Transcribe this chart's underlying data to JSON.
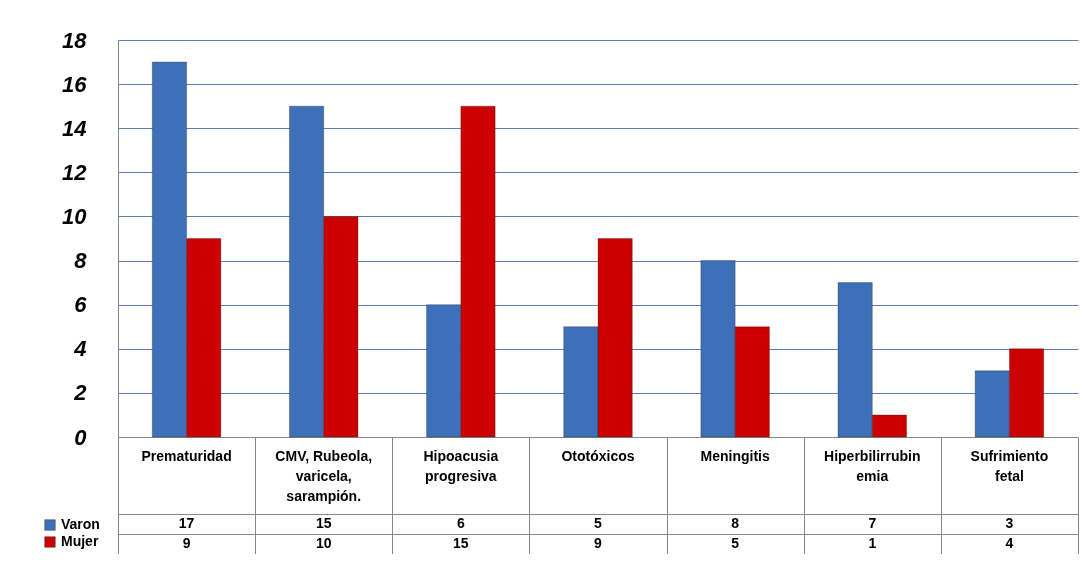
{
  "chart_data": {
    "type": "bar",
    "categories": [
      "Prematuridad",
      "CMV, Rubeola, varicela, sarampión.",
      "Hipoacusia progresiva",
      "Ototóxicos",
      "Meningitis",
      "Hiperbilirrubin emia",
      "Sufrimiento fetal"
    ],
    "series": [
      {
        "name": "Varon",
        "color": "#3d70b8",
        "values": [
          17,
          15,
          6,
          5,
          8,
          7,
          3
        ]
      },
      {
        "name": "Mujer",
        "color": "#cc0000",
        "values": [
          9,
          10,
          15,
          9,
          5,
          1,
          4
        ]
      }
    ],
    "ylim": [
      0,
      18
    ],
    "yticks": [
      0,
      2,
      4,
      6,
      8,
      10,
      12,
      14,
      16,
      18
    ],
    "grid": "y",
    "legend": "bottom left",
    "data_labels": true
  }
}
